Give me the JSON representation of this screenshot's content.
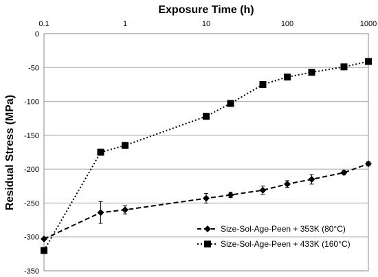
{
  "chart_data": {
    "type": "line",
    "xlabel": "Exposure Time (h)",
    "ylabel": "Residual Stress (MPa)",
    "x_scale": "log",
    "xlim": [
      0.1,
      1000
    ],
    "ylim": [
      -350,
      0
    ],
    "x_ticks": [
      0.1,
      1,
      10,
      100,
      1000
    ],
    "x_tick_labels": [
      "0.1",
      "1",
      "10",
      "100",
      "1000"
    ],
    "y_ticks": [
      0,
      -50,
      -100,
      -150,
      -200,
      -250,
      -300,
      -350
    ],
    "y_tick_labels": [
      "0",
      "-50",
      "-100",
      "-150",
      "-200",
      "-250",
      "-300",
      "-350"
    ],
    "grid": "horizontal",
    "legend_position": "bottom-right",
    "series": [
      {
        "name": "Size-Sol-Age-Peen + 353K (80°C)",
        "marker": "diamond",
        "line_style": "dashed",
        "color": "#000000",
        "x": [
          0.1,
          0.5,
          1,
          10,
          20,
          50,
          100,
          200,
          500,
          1000
        ],
        "y": [
          -303,
          -264,
          -260,
          -243,
          -238,
          -231,
          -222,
          -215,
          -205,
          -192
        ],
        "error": [
          0,
          16,
          6,
          7,
          4,
          6,
          5,
          7,
          3,
          3
        ]
      },
      {
        "name": "Size-Sol-Age-Peen + 433K (160°C)",
        "marker": "square",
        "line_style": "dotted",
        "color": "#000000",
        "x": [
          0.1,
          0.5,
          1,
          10,
          20,
          50,
          100,
          200,
          500,
          1000
        ],
        "y": [
          -320,
          -175,
          -165,
          -122,
          -103,
          -75,
          -64,
          -57,
          -49,
          -41
        ]
      }
    ]
  }
}
